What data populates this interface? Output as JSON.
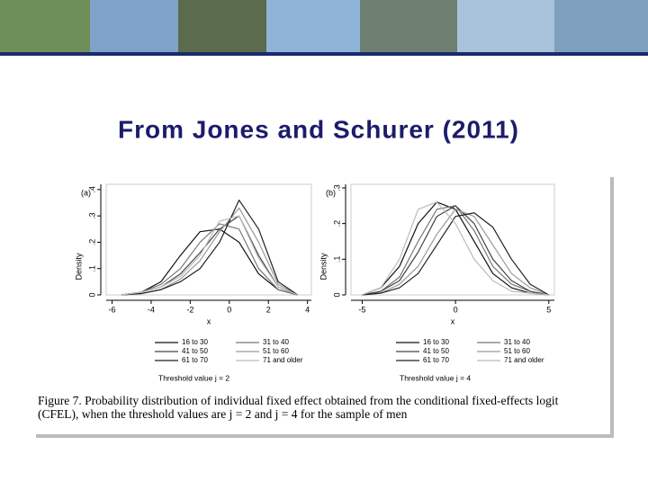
{
  "title": "From Jones and Schurer (2011)",
  "caption": [
    "Figure 7. Probability distribution of individual fixed effect obtained from the conditional fixed-effects logit",
    "(CFEL), when the threshold values are j = 2 and j = 4 for the sample of men"
  ],
  "chart_data": [
    {
      "type": "line",
      "panel": "(a)",
      "ylabel": "Density",
      "xlabel": "x",
      "legend_title": "Threshold value j = 2",
      "x": [
        -5.5,
        -4.5,
        -3.5,
        -2.5,
        -1.5,
        -0.5,
        0.5,
        1.5,
        2.5,
        3.5
      ],
      "xlim": [
        -6.3,
        4.2
      ],
      "xticks": [
        -6,
        -4,
        -2,
        0,
        2,
        4
      ],
      "ylim": [
        0,
        0.42
      ],
      "yticks": [
        0,
        {
          "value": 0.1,
          "label": ".1"
        },
        {
          "value": 0.2,
          "label": ".2"
        },
        {
          "value": 0.3,
          "label": ".3"
        },
        {
          "value": 0.4,
          "label": ".4"
        }
      ],
      "series": [
        {
          "name": "16 to 30",
          "color": "#111111",
          "values": [
            0,
            0.01,
            0.05,
            0.15,
            0.24,
            0.25,
            0.2,
            0.08,
            0.02,
            0
          ]
        },
        {
          "name": "31 to 40",
          "color": "#777777",
          "values": [
            0,
            0.01,
            0.04,
            0.1,
            0.2,
            0.27,
            0.25,
            0.1,
            0.02,
            0
          ]
        },
        {
          "name": "41 to 50",
          "color": "#444444",
          "values": [
            0,
            0.01,
            0.03,
            0.08,
            0.16,
            0.25,
            0.3,
            0.15,
            0.03,
            0
          ]
        },
        {
          "name": "51 to 60",
          "color": "#999999",
          "values": [
            0,
            0.005,
            0.02,
            0.06,
            0.13,
            0.24,
            0.33,
            0.2,
            0.04,
            0
          ]
        },
        {
          "name": "61 to 70",
          "color": "#222222",
          "values": [
            0,
            0.005,
            0.02,
            0.05,
            0.1,
            0.2,
            0.36,
            0.25,
            0.05,
            0
          ]
        },
        {
          "name": "71 and older",
          "color": "#bbbbbb",
          "values": [
            0,
            0.01,
            0.03,
            0.07,
            0.15,
            0.28,
            0.3,
            0.14,
            0.03,
            0
          ]
        }
      ]
    },
    {
      "type": "line",
      "panel": "(b)",
      "ylabel": "Density",
      "xlabel": "x",
      "legend_title": "Threshold value j = 4",
      "x": [
        -5,
        -4,
        -3,
        -2,
        -1,
        0,
        1,
        2,
        3,
        4,
        5
      ],
      "xlim": [
        -5.6,
        5.3
      ],
      "xticks": [
        -5,
        0,
        5
      ],
      "ylim": [
        0,
        0.31
      ],
      "yticks": [
        0,
        {
          "value": 0.1,
          "label": ".1"
        },
        {
          "value": 0.2,
          "label": ".2"
        },
        {
          "value": 0.3,
          "label": ".3"
        }
      ],
      "series": [
        {
          "name": "16 to 30",
          "color": "#111111",
          "values": [
            0,
            0.02,
            0.08,
            0.2,
            0.26,
            0.24,
            0.15,
            0.06,
            0.02,
            0.005,
            0
          ]
        },
        {
          "name": "31 to 40",
          "color": "#777777",
          "values": [
            0,
            0.01,
            0.05,
            0.15,
            0.24,
            0.25,
            0.18,
            0.08,
            0.03,
            0.01,
            0
          ]
        },
        {
          "name": "41 to 50",
          "color": "#444444",
          "values": [
            0,
            0.01,
            0.04,
            0.12,
            0.22,
            0.25,
            0.2,
            0.1,
            0.04,
            0.01,
            0
          ]
        },
        {
          "name": "51 to 60",
          "color": "#999999",
          "values": [
            0,
            0.005,
            0.03,
            0.08,
            0.17,
            0.24,
            0.22,
            0.14,
            0.06,
            0.02,
            0
          ]
        },
        {
          "name": "61 to 70",
          "color": "#222222",
          "values": [
            0,
            0.005,
            0.02,
            0.06,
            0.14,
            0.22,
            0.23,
            0.19,
            0.1,
            0.03,
            0
          ]
        },
        {
          "name": "71 and older",
          "color": "#bbbbbb",
          "values": [
            0,
            0.02,
            0.1,
            0.24,
            0.26,
            0.2,
            0.1,
            0.04,
            0.01,
            0.005,
            0
          ]
        }
      ]
    }
  ]
}
